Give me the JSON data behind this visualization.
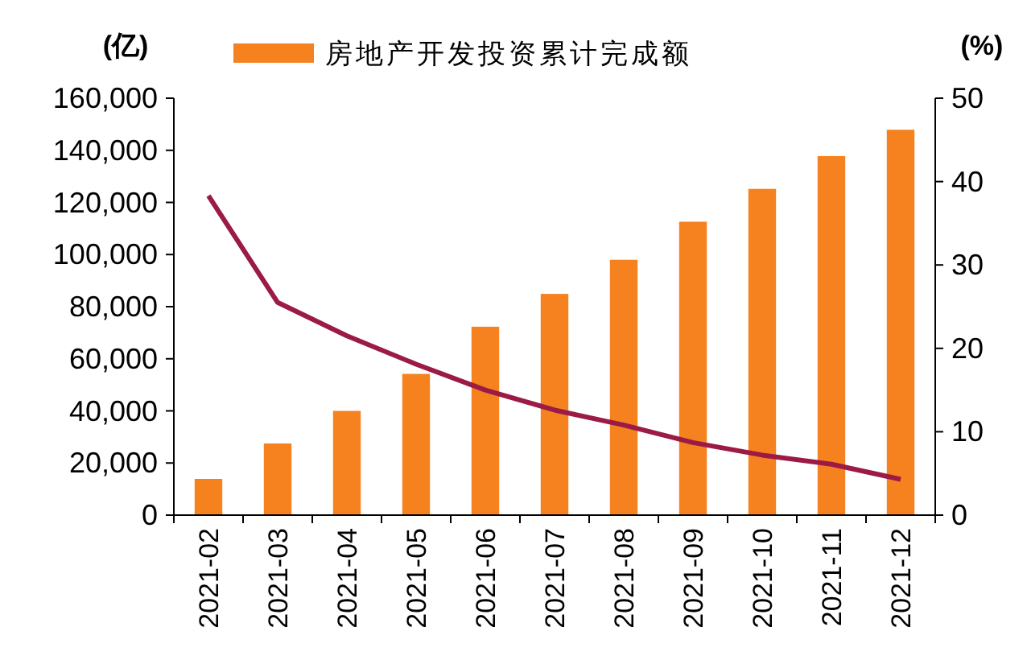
{
  "chart_data": {
    "type": "bar",
    "ylabel": "(亿)",
    "y2label": "(%)",
    "categories": [
      "2021-02",
      "2021-03",
      "2021-04",
      "2021-05",
      "2021-06",
      "2021-07",
      "2021-08",
      "2021-09",
      "2021-10",
      "2021-11",
      "2021-12"
    ],
    "series": [
      {
        "name": "房地产开发投资累计完成额",
        "color": "#f5821f",
        "values": [
          13900,
          27500,
          40000,
          54200,
          72300,
          84900,
          98000,
          112600,
          125200,
          137800,
          147900
        ]
      },
      {
        "type": "line",
        "axis": "y2",
        "color": "#9b1b45",
        "values": [
          38.3,
          25.5,
          21.5,
          18.1,
          15.0,
          12.6,
          10.8,
          8.7,
          7.2,
          6.1,
          4.3
        ]
      }
    ],
    "ylim": [
      0,
      160000
    ],
    "yticks": [
      {
        "value": 0,
        "label": "0"
      },
      {
        "value": 20000,
        "label": "20,000"
      },
      {
        "value": 40000,
        "label": "40,000"
      },
      {
        "value": 60000,
        "label": "60,000"
      },
      {
        "value": 80000,
        "label": "80,000"
      },
      {
        "value": 100000,
        "label": "100,000"
      },
      {
        "value": 120000,
        "label": "120,000"
      },
      {
        "value": 140000,
        "label": "140,000"
      },
      {
        "value": 160000,
        "label": "160,000"
      }
    ],
    "y2lim": [
      0,
      50
    ],
    "y2ticks": [
      0,
      10,
      20,
      30,
      40,
      50
    ],
    "legend": "top",
    "grid": false
  }
}
